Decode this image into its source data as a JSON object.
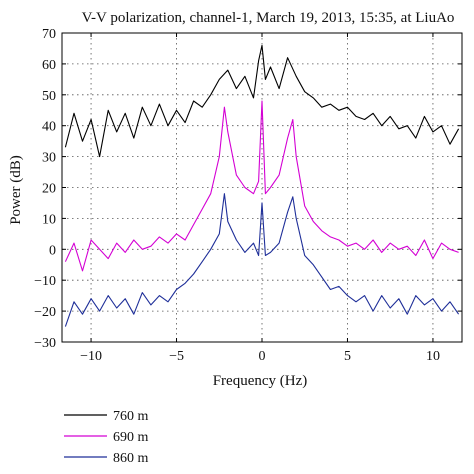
{
  "chart_data": {
    "type": "line",
    "title": "V-V polarization, channel-1, March 19, 2013, 15:35, at LiuAo",
    "xlabel": "Frequency (Hz)",
    "ylabel": "Power (dB)",
    "xlim": [
      -11.7,
      11.7
    ],
    "ylim": [
      -30,
      70
    ],
    "xticks": [
      -10,
      -5,
      0,
      5,
      10
    ],
    "yticks": [
      -30,
      -20,
      -10,
      0,
      10,
      20,
      30,
      40,
      50,
      60,
      70
    ],
    "grid": "dotted",
    "legend_position": "below plot",
    "series": [
      {
        "name": "760 m",
        "color": "#000000",
        "x": [
          -11.5,
          -11,
          -10.5,
          -10,
          -9.5,
          -9,
          -8.5,
          -8,
          -7.5,
          -7,
          -6.5,
          -6,
          -5.5,
          -5,
          -4.5,
          -4,
          -3.5,
          -3,
          -2.5,
          -2,
          -1.5,
          -1,
          -0.5,
          -0.2,
          0,
          0.2,
          0.5,
          1,
          1.5,
          2,
          2.5,
          3,
          3.5,
          4,
          4.5,
          5,
          5.5,
          6,
          6.5,
          7,
          7.5,
          8,
          8.5,
          9,
          9.5,
          10,
          10.5,
          11,
          11.5
        ],
        "y": [
          33,
          44,
          35,
          42,
          30,
          45,
          38,
          44,
          36,
          46,
          40,
          47,
          40,
          45,
          41,
          48,
          46,
          50,
          55,
          58,
          52,
          56,
          49,
          61,
          66,
          55,
          59,
          52,
          62,
          56,
          51,
          49,
          46,
          47,
          45,
          46,
          43,
          42,
          44,
          40,
          43,
          39,
          40,
          36,
          43,
          38,
          40,
          34,
          39
        ]
      },
      {
        "name": "690 m",
        "color": "#d400d4",
        "x": [
          -11.5,
          -11,
          -10.5,
          -10,
          -9.5,
          -9,
          -8.5,
          -8,
          -7.5,
          -7,
          -6.5,
          -6,
          -5.5,
          -5,
          -4.5,
          -4,
          -3.5,
          -3,
          -2.5,
          -2.2,
          -2,
          -1.5,
          -1,
          -0.5,
          -0.2,
          0,
          0.2,
          0.5,
          1,
          1.5,
          1.8,
          2,
          2.5,
          3,
          3.5,
          4,
          4.5,
          5,
          5.5,
          6,
          6.5,
          7,
          7.5,
          8,
          8.5,
          9,
          9.5,
          10,
          10.5,
          11,
          11.5
        ],
        "y": [
          -4,
          2,
          -7,
          3,
          0,
          -3,
          2,
          -1,
          3,
          0,
          1,
          4,
          2,
          5,
          3,
          8,
          13,
          18,
          30,
          46,
          38,
          24,
          20,
          18,
          22,
          48,
          18,
          20,
          24,
          36,
          42,
          30,
          14,
          9,
          6,
          4,
          3,
          1,
          2,
          0,
          3,
          -1,
          2,
          0,
          1,
          -2,
          3,
          -3,
          2,
          0,
          -1
        ]
      },
      {
        "name": "860 m",
        "color": "#1f2f99",
        "x": [
          -11.5,
          -11,
          -10.5,
          -10,
          -9.5,
          -9,
          -8.5,
          -8,
          -7.5,
          -7,
          -6.5,
          -6,
          -5.5,
          -5,
          -4.5,
          -4,
          -3.5,
          -3,
          -2.5,
          -2.2,
          -2,
          -1.5,
          -1,
          -0.5,
          -0.2,
          0,
          0.2,
          0.5,
          1,
          1.5,
          1.8,
          2,
          2.5,
          3,
          3.5,
          4,
          4.5,
          5,
          5.5,
          6,
          6.5,
          7,
          7.5,
          8,
          8.5,
          9,
          9.5,
          10,
          10.5,
          11,
          11.5
        ],
        "y": [
          -25,
          -17,
          -21,
          -16,
          -20,
          -15,
          -19,
          -16,
          -21,
          -14,
          -18,
          -15,
          -17,
          -13,
          -11,
          -8,
          -4,
          0,
          5,
          18,
          9,
          3,
          -1,
          2,
          -2,
          15,
          -2,
          -1,
          2,
          12,
          17,
          10,
          -2,
          -5,
          -9,
          -13,
          -12,
          -15,
          -17,
          -15,
          -20,
          -15,
          -19,
          -16,
          -21,
          -15,
          -18,
          -16,
          -20,
          -17,
          -21
        ]
      }
    ]
  }
}
